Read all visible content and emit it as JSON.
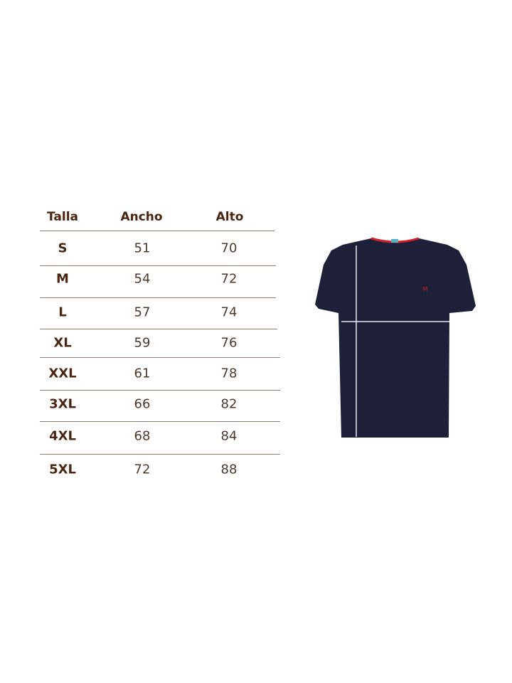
{
  "table": {
    "headers": [
      "Talla",
      "Ancho",
      "Alto"
    ],
    "rows": [
      {
        "talla": "S",
        "ancho": "51",
        "alto": "70"
      },
      {
        "talla": "M",
        "ancho": "54",
        "alto": "72"
      },
      {
        "talla": "L",
        "ancho": "57",
        "alto": "74"
      },
      {
        "talla": "XL",
        "ancho": "59",
        "alto": "76"
      },
      {
        "talla": "XXL",
        "ancho": "61",
        "alto": "78"
      },
      {
        "talla": "3XL",
        "ancho": "66",
        "alto": "82"
      },
      {
        "talla": "4XL",
        "ancho": "68",
        "alto": "84"
      },
      {
        "talla": "5XL",
        "ancho": "72",
        "alto": "88"
      }
    ]
  },
  "colors": {
    "text": "#4a2511",
    "shirt": "#1e1f38",
    "collar": "#d0202a",
    "measure_lines": "#e8e8ee"
  },
  "image": {
    "subject": "navy t-shirt with measurement lines"
  }
}
